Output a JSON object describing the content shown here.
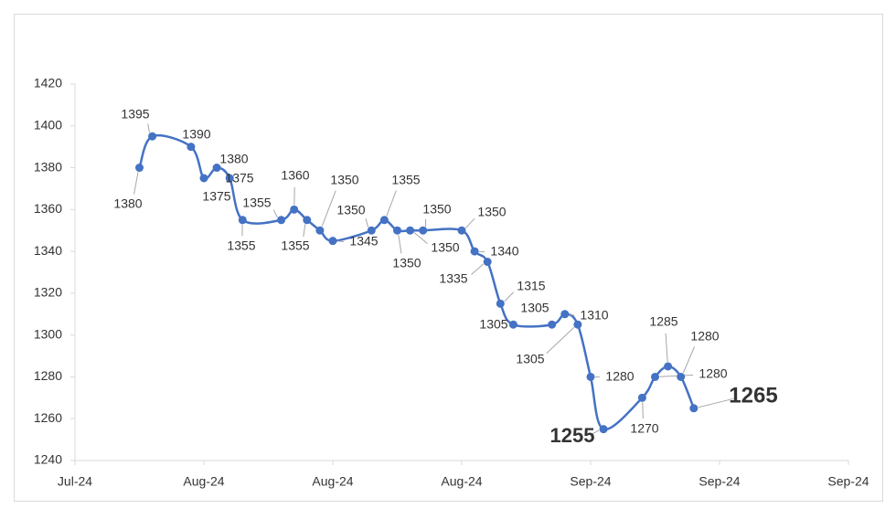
{
  "chart_data": {
    "type": "line",
    "x": [
      5,
      6,
      9,
      10,
      11,
      12,
      13,
      16,
      17,
      18,
      19,
      20,
      23,
      24,
      25,
      26,
      27,
      30,
      31,
      32,
      33,
      34,
      37,
      38,
      39,
      40,
      41,
      44,
      45,
      46,
      47,
      48
    ],
    "series": [
      {
        "color": "#4472c4",
        "values": [
          1380,
          1395,
          1390,
          1375,
          1380,
          1375,
          1355,
          1355,
          1360,
          1355,
          1350,
          1345,
          1350,
          1355,
          1350,
          1350,
          1350,
          1350,
          1340,
          1335,
          1315,
          1305,
          1305,
          1310,
          1305,
          1280,
          1255,
          1270,
          1280,
          1285,
          1280,
          1265
        ]
      }
    ],
    "xlim": [
      0,
      60
    ],
    "xticks": [
      {
        "value": 0,
        "label": "Jul-24"
      },
      {
        "value": 10,
        "label": "Aug-24"
      },
      {
        "value": 20,
        "label": "Aug-24"
      },
      {
        "value": 30,
        "label": "Aug-24"
      },
      {
        "value": 40,
        "label": "Sep-24"
      },
      {
        "value": 50,
        "label": "Sep-24"
      },
      {
        "value": 60,
        "label": "Sep-24"
      }
    ],
    "ylim": [
      1240,
      1420
    ],
    "yticks": [
      1240,
      1260,
      1280,
      1300,
      1320,
      1340,
      1360,
      1380,
      1400,
      1420
    ],
    "grid": false
  }
}
